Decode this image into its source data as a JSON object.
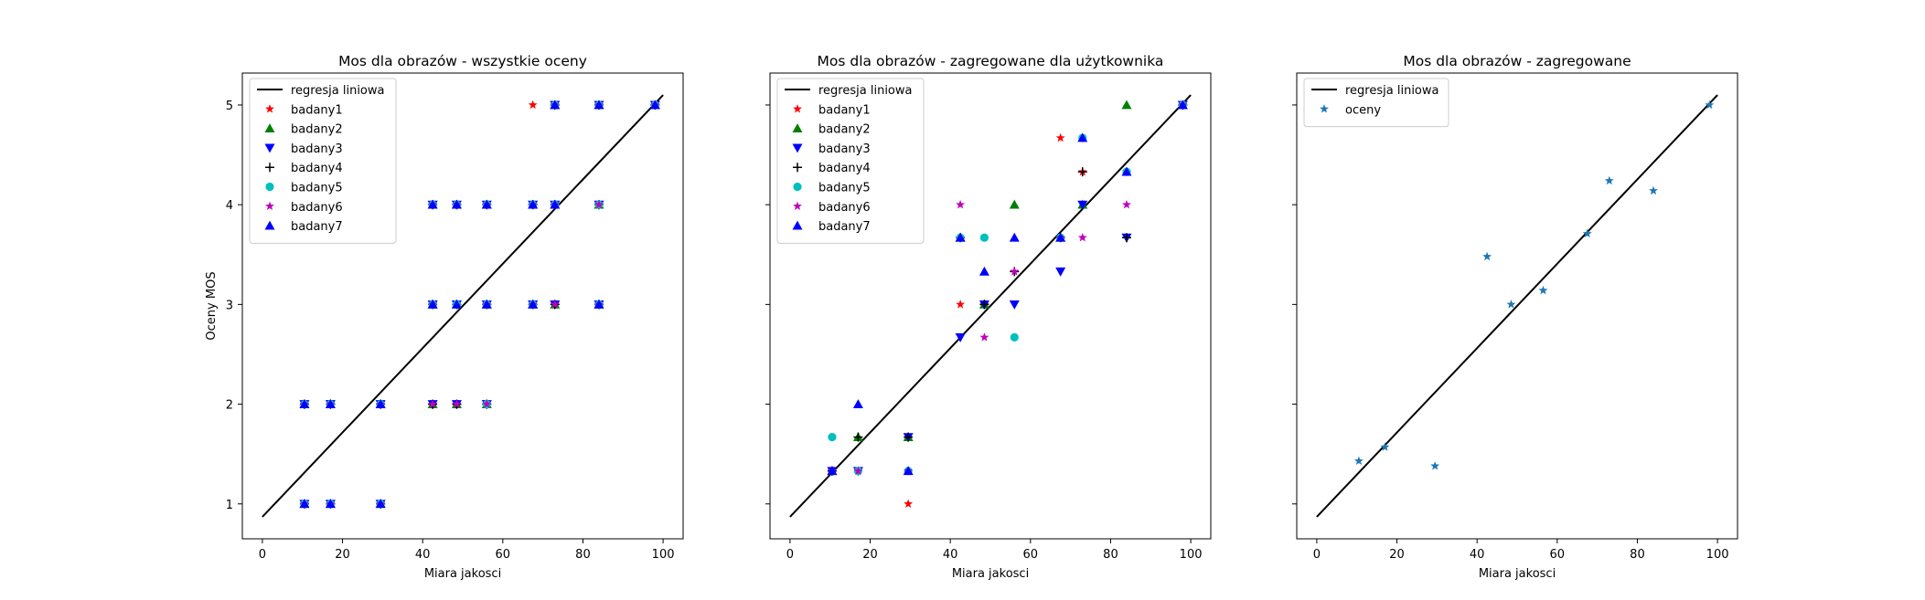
{
  "chart_data": [
    {
      "type": "scatter",
      "title": "Mos dla obrazów - wszystkie oceny",
      "xlabel": "Miara jakosci",
      "ylabel": "Oceny MOS",
      "xlim": [
        -5,
        105
      ],
      "ylim": [
        0.65,
        5.32
      ],
      "xticks": [
        0,
        20,
        40,
        60,
        80,
        100
      ],
      "yticks": [
        1,
        2,
        3,
        4,
        5
      ],
      "grid": false,
      "legend": "top-left",
      "regression": {
        "name": "regresja liniowa",
        "x": [
          0,
          100
        ],
        "y": [
          0.87,
          5.1
        ],
        "color": "#000000"
      },
      "series": [
        {
          "name": "badany1",
          "marker": "star",
          "color": "#ff0000",
          "points": [
            [
              10.5,
              1
            ],
            [
              17,
              1
            ],
            [
              29.5,
              1
            ],
            [
              10.5,
              2
            ],
            [
              17,
              2
            ],
            [
              29.5,
              2
            ],
            [
              42.5,
              2
            ],
            [
              48.5,
              2
            ],
            [
              56,
              2
            ],
            [
              42.5,
              3
            ],
            [
              48.5,
              3
            ],
            [
              56,
              3
            ],
            [
              67.5,
              3
            ],
            [
              73,
              3
            ],
            [
              84,
              3
            ],
            [
              42.5,
              4
            ],
            [
              48.5,
              4
            ],
            [
              56,
              4
            ],
            [
              67.5,
              4
            ],
            [
              73,
              4
            ],
            [
              84,
              4
            ],
            [
              67.5,
              5
            ],
            [
              73,
              5
            ],
            [
              84,
              5
            ],
            [
              98,
              5
            ]
          ]
        },
        {
          "name": "badany2",
          "marker": "triangle-up",
          "color": "#008000",
          "points": [
            [
              10.5,
              1
            ],
            [
              17,
              1
            ],
            [
              29.5,
              1
            ],
            [
              10.5,
              2
            ],
            [
              17,
              2
            ],
            [
              29.5,
              2
            ],
            [
              42.5,
              2
            ],
            [
              48.5,
              2
            ],
            [
              56,
              2
            ],
            [
              42.5,
              3
            ],
            [
              48.5,
              3
            ],
            [
              56,
              3
            ],
            [
              67.5,
              3
            ],
            [
              73,
              3
            ],
            [
              84,
              3
            ],
            [
              42.5,
              4
            ],
            [
              48.5,
              4
            ],
            [
              56,
              4
            ],
            [
              67.5,
              4
            ],
            [
              73,
              4
            ],
            [
              84,
              4
            ],
            [
              73,
              5
            ],
            [
              84,
              5
            ],
            [
              98,
              5
            ]
          ]
        },
        {
          "name": "badany3",
          "marker": "triangle-down",
          "color": "#0000ff",
          "points": [
            [
              10.5,
              1
            ],
            [
              17,
              1
            ],
            [
              29.5,
              1
            ],
            [
              10.5,
              2
            ],
            [
              17,
              2
            ],
            [
              29.5,
              2
            ],
            [
              42.5,
              2
            ],
            [
              48.5,
              2
            ],
            [
              56,
              2
            ],
            [
              42.5,
              3
            ],
            [
              48.5,
              3
            ],
            [
              56,
              3
            ],
            [
              67.5,
              3
            ],
            [
              73,
              3
            ],
            [
              84,
              3
            ],
            [
              42.5,
              4
            ],
            [
              48.5,
              4
            ],
            [
              56,
              4
            ],
            [
              67.5,
              4
            ],
            [
              73,
              4
            ],
            [
              84,
              4
            ],
            [
              73,
              5
            ],
            [
              84,
              5
            ],
            [
              98,
              5
            ]
          ]
        },
        {
          "name": "badany4",
          "marker": "plus",
          "color": "#000000",
          "points": [
            [
              10.5,
              1
            ],
            [
              17,
              1
            ],
            [
              29.5,
              1
            ],
            [
              10.5,
              2
            ],
            [
              17,
              2
            ],
            [
              29.5,
              2
            ],
            [
              42.5,
              2
            ],
            [
              48.5,
              2
            ],
            [
              56,
              2
            ],
            [
              42.5,
              3
            ],
            [
              48.5,
              3
            ],
            [
              56,
              3
            ],
            [
              67.5,
              3
            ],
            [
              73,
              3
            ],
            [
              84,
              3
            ],
            [
              42.5,
              4
            ],
            [
              48.5,
              4
            ],
            [
              56,
              4
            ],
            [
              67.5,
              4
            ],
            [
              73,
              4
            ],
            [
              84,
              4
            ],
            [
              73,
              5
            ],
            [
              84,
              5
            ],
            [
              98,
              5
            ]
          ]
        },
        {
          "name": "badany5",
          "marker": "circle",
          "color": "#00bfbf",
          "points": [
            [
              10.5,
              1
            ],
            [
              17,
              1
            ],
            [
              29.5,
              1
            ],
            [
              10.5,
              2
            ],
            [
              17,
              2
            ],
            [
              29.5,
              2
            ],
            [
              56,
              2
            ],
            [
              42.5,
              3
            ],
            [
              48.5,
              3
            ],
            [
              56,
              3
            ],
            [
              67.5,
              3
            ],
            [
              84,
              3
            ],
            [
              42.5,
              4
            ],
            [
              48.5,
              4
            ],
            [
              56,
              4
            ],
            [
              67.5,
              4
            ],
            [
              73,
              4
            ],
            [
              84,
              4
            ],
            [
              73,
              5
            ],
            [
              84,
              5
            ],
            [
              98,
              5
            ]
          ]
        },
        {
          "name": "badany6",
          "marker": "star",
          "color": "#bf00bf",
          "points": [
            [
              10.5,
              1
            ],
            [
              17,
              1
            ],
            [
              29.5,
              1
            ],
            [
              10.5,
              2
            ],
            [
              17,
              2
            ],
            [
              29.5,
              2
            ],
            [
              42.5,
              2
            ],
            [
              48.5,
              2
            ],
            [
              56,
              2
            ],
            [
              42.5,
              3
            ],
            [
              56,
              3
            ],
            [
              67.5,
              3
            ],
            [
              73,
              3
            ],
            [
              84,
              3
            ],
            [
              42.5,
              4
            ],
            [
              48.5,
              4
            ],
            [
              56,
              4
            ],
            [
              67.5,
              4
            ],
            [
              73,
              4
            ],
            [
              84,
              4
            ],
            [
              73,
              5
            ],
            [
              84,
              5
            ],
            [
              98,
              5
            ]
          ]
        },
        {
          "name": "badany7",
          "marker": "triangle-up",
          "color": "#0000ff",
          "points": [
            [
              10.5,
              1
            ],
            [
              17,
              1
            ],
            [
              29.5,
              1
            ],
            [
              10.5,
              2
            ],
            [
              17,
              2
            ],
            [
              29.5,
              2
            ],
            [
              42.5,
              3
            ],
            [
              48.5,
              3
            ],
            [
              56,
              3
            ],
            [
              67.5,
              3
            ],
            [
              84,
              3
            ],
            [
              42.5,
              4
            ],
            [
              48.5,
              4
            ],
            [
              56,
              4
            ],
            [
              67.5,
              4
            ],
            [
              73,
              4
            ],
            [
              73,
              5
            ],
            [
              84,
              5
            ],
            [
              98,
              5
            ]
          ]
        }
      ]
    },
    {
      "type": "scatter",
      "title": "Mos dla obrazów - zagregowane dla użytkownika",
      "xlabel": "Miara jakosci",
      "ylabel": "",
      "xlim": [
        -5,
        105
      ],
      "ylim": [
        0.65,
        5.32
      ],
      "xticks": [
        0,
        20,
        40,
        60,
        80,
        100
      ],
      "yticks": [
        1,
        2,
        3,
        4,
        5
      ],
      "grid": false,
      "legend": "top-left",
      "regression": {
        "name": "regresja liniowa",
        "x": [
          0,
          100
        ],
        "y": [
          0.87,
          5.1
        ],
        "color": "#000000"
      },
      "series": [
        {
          "name": "badany1",
          "marker": "star",
          "color": "#ff0000",
          "points": [
            [
              10.5,
              1.33
            ],
            [
              17,
              1.33
            ],
            [
              29.5,
              1
            ],
            [
              42.5,
              3
            ],
            [
              48.5,
              3
            ],
            [
              56,
              3.33
            ],
            [
              67.5,
              4.67
            ],
            [
              73,
              4.33
            ],
            [
              84,
              4.33
            ],
            [
              98,
              5
            ]
          ]
        },
        {
          "name": "badany2",
          "marker": "triangle-up",
          "color": "#008000",
          "points": [
            [
              10.5,
              1.33
            ],
            [
              17,
              1.67
            ],
            [
              29.5,
              1.67
            ],
            [
              42.5,
              3.67
            ],
            [
              48.5,
              3
            ],
            [
              56,
              4
            ],
            [
              67.5,
              3.67
            ],
            [
              73,
              4
            ],
            [
              84,
              5
            ],
            [
              98,
              5
            ]
          ]
        },
        {
          "name": "badany3",
          "marker": "triangle-down",
          "color": "#0000ff",
          "points": [
            [
              10.5,
              1.33
            ],
            [
              17,
              1.33
            ],
            [
              29.5,
              1.67
            ],
            [
              42.5,
              2.67
            ],
            [
              48.5,
              3
            ],
            [
              56,
              3
            ],
            [
              67.5,
              3.33
            ],
            [
              73,
              4
            ],
            [
              84,
              3.67
            ],
            [
              98,
              5
            ]
          ]
        },
        {
          "name": "badany4",
          "marker": "plus",
          "color": "#000000",
          "points": [
            [
              10.5,
              1.33
            ],
            [
              17,
              1.67
            ],
            [
              29.5,
              1.67
            ],
            [
              42.5,
              3.67
            ],
            [
              48.5,
              3
            ],
            [
              56,
              3.33
            ],
            [
              67.5,
              3.67
            ],
            [
              73,
              4.33
            ],
            [
              84,
              3.67
            ],
            [
              98,
              5
            ]
          ]
        },
        {
          "name": "badany5",
          "marker": "circle",
          "color": "#00bfbf",
          "points": [
            [
              10.5,
              1.67
            ],
            [
              17,
              1.33
            ],
            [
              29.5,
              1.33
            ],
            [
              42.5,
              3.67
            ],
            [
              48.5,
              3.67
            ],
            [
              56,
              2.67
            ],
            [
              67.5,
              3.67
            ],
            [
              73,
              4.67
            ],
            [
              84,
              4.33
            ],
            [
              98,
              5
            ]
          ]
        },
        {
          "name": "badany6",
          "marker": "star",
          "color": "#bf00bf",
          "points": [
            [
              10.5,
              1.33
            ],
            [
              17,
              1.33
            ],
            [
              29.5,
              1.33
            ],
            [
              42.5,
              4
            ],
            [
              48.5,
              2.67
            ],
            [
              56,
              3.33
            ],
            [
              67.5,
              3.67
            ],
            [
              73,
              3.67
            ],
            [
              84,
              4
            ],
            [
              98,
              5
            ]
          ]
        },
        {
          "name": "badany7",
          "marker": "triangle-up",
          "color": "#0000ff",
          "points": [
            [
              10.5,
              1.33
            ],
            [
              17,
              2
            ],
            [
              29.5,
              1.33
            ],
            [
              42.5,
              3.67
            ],
            [
              48.5,
              3.33
            ],
            [
              56,
              3.67
            ],
            [
              67.5,
              3.67
            ],
            [
              73,
              4.67
            ],
            [
              84,
              4.33
            ],
            [
              98,
              5
            ]
          ]
        }
      ]
    },
    {
      "type": "scatter",
      "title": "Mos dla obrazów - zagregowane",
      "xlabel": "Miara jakosci",
      "ylabel": "",
      "xlim": [
        -5,
        105
      ],
      "ylim": [
        0.65,
        5.32
      ],
      "xticks": [
        0,
        20,
        40,
        60,
        80,
        100
      ],
      "yticks": [
        1,
        2,
        3,
        4,
        5
      ],
      "grid": false,
      "legend": "top-left",
      "regression": {
        "name": "regresja liniowa",
        "x": [
          0,
          100
        ],
        "y": [
          0.87,
          5.1
        ],
        "color": "#000000"
      },
      "series": [
        {
          "name": "oceny",
          "marker": "star",
          "color": "#1f77b4",
          "points": [
            [
              10.5,
              1.43
            ],
            [
              17,
              1.57
            ],
            [
              29.5,
              1.38
            ],
            [
              42.5,
              3.48
            ],
            [
              48.5,
              3
            ],
            [
              56.5,
              3.14
            ],
            [
              67.5,
              3.71
            ],
            [
              73,
              4.24
            ],
            [
              84,
              4.14
            ],
            [
              98,
              5
            ]
          ]
        }
      ]
    }
  ]
}
